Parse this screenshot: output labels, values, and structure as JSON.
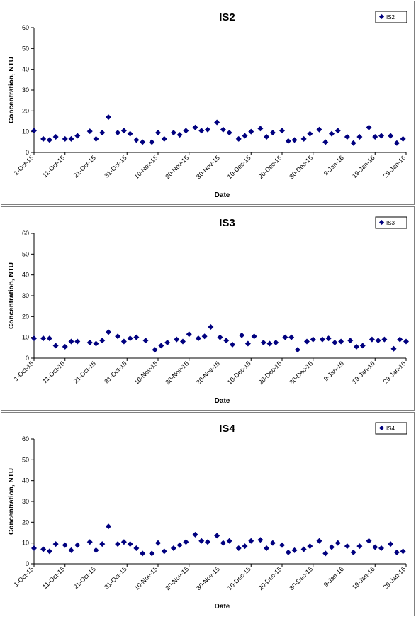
{
  "colors": {
    "marker": "#00007F",
    "axis": "#000000",
    "border": "#808080"
  },
  "chart_data": [
    {
      "type": "scatter",
      "title": "IS2",
      "xlabel": "Date",
      "ylabel": "Concentration, NTU",
      "ylim": [
        0,
        60
      ],
      "yticks": [
        "0",
        "10",
        "20",
        "30",
        "40",
        "50",
        "60"
      ],
      "xlim": [
        "2015-10-01",
        "2016-01-29"
      ],
      "xticks": [
        "1-Oct-15",
        "11-Oct-15",
        "21-Oct-15",
        "31-Oct-15",
        "10-Nov-15",
        "20-Nov-15",
        "30-Nov-15",
        "10-Dec-15",
        "20-Dec-15",
        "30-Dec-15",
        "9-Jan-16",
        "19-Jan-16",
        "29-Jan-16"
      ],
      "legend": "top-right",
      "grid": false,
      "series": [
        {
          "name": "IS2",
          "points": [
            [
              "2015-10-01",
              10.5
            ],
            [
              "2015-10-04",
              6.5
            ],
            [
              "2015-10-06",
              6
            ],
            [
              "2015-10-08",
              7.5
            ],
            [
              "2015-10-11",
              6.5
            ],
            [
              "2015-10-13",
              6.5
            ],
            [
              "2015-10-15",
              8
            ],
            [
              "2015-10-19",
              10.2
            ],
            [
              "2015-10-21",
              6.5
            ],
            [
              "2015-10-23",
              9.5
            ],
            [
              "2015-10-25",
              17
            ],
            [
              "2015-10-28",
              9.5
            ],
            [
              "2015-10-30",
              10.5
            ],
            [
              "2015-11-01",
              9
            ],
            [
              "2015-11-03",
              6
            ],
            [
              "2015-11-05",
              5
            ],
            [
              "2015-11-08",
              5
            ],
            [
              "2015-11-10",
              9.5
            ],
            [
              "2015-11-12",
              6.5
            ],
            [
              "2015-11-15",
              9.5
            ],
            [
              "2015-11-17",
              8.5
            ],
            [
              "2015-11-19",
              10.5
            ],
            [
              "2015-11-22",
              12
            ],
            [
              "2015-11-24",
              10.5
            ],
            [
              "2015-11-26",
              11
            ],
            [
              "2015-11-29",
              14.5
            ],
            [
              "2015-12-01",
              11
            ],
            [
              "2015-12-03",
              9.5
            ],
            [
              "2015-12-06",
              6.5
            ],
            [
              "2015-12-08",
              8
            ],
            [
              "2015-12-10",
              10
            ],
            [
              "2015-12-13",
              11.5
            ],
            [
              "2015-12-15",
              7.5
            ],
            [
              "2015-12-17",
              9.5
            ],
            [
              "2015-12-20",
              10.5
            ],
            [
              "2015-12-22",
              5.5
            ],
            [
              "2015-12-24",
              6
            ],
            [
              "2015-12-27",
              6.5
            ],
            [
              "2015-12-29",
              9
            ],
            [
              "2016-01-01",
              11
            ],
            [
              "2016-01-03",
              5
            ],
            [
              "2016-01-05",
              9
            ],
            [
              "2016-01-07",
              10.5
            ],
            [
              "2016-01-10",
              7.5
            ],
            [
              "2016-01-12",
              4.5
            ],
            [
              "2016-01-14",
              7.5
            ],
            [
              "2016-01-17",
              12
            ],
            [
              "2016-01-19",
              7.5
            ],
            [
              "2016-01-21",
              8
            ],
            [
              "2016-01-24",
              8
            ],
            [
              "2016-01-26",
              4.5
            ],
            [
              "2016-01-28",
              6.5
            ]
          ]
        }
      ]
    },
    {
      "type": "scatter",
      "title": "IS3",
      "xlabel": "Date",
      "ylabel": "Concentration, NTU",
      "ylim": [
        0,
        60
      ],
      "yticks": [
        "0",
        "10",
        "20",
        "30",
        "40",
        "50",
        "60"
      ],
      "xlim": [
        "2015-10-01",
        "2016-01-29"
      ],
      "xticks": [
        "1-Oct-15",
        "11-Oct-15",
        "21-Oct-15",
        "31-Oct-15",
        "10-Nov-15",
        "20-Nov-15",
        "30-Nov-15",
        "10-Dec-15",
        "20-Dec-15",
        "30-Dec-15",
        "9-Jan-16",
        "19-Jan-16",
        "29-Jan-16"
      ],
      "legend": "top-right",
      "grid": false,
      "series": [
        {
          "name": "IS3",
          "points": [
            [
              "2015-10-01",
              9.5
            ],
            [
              "2015-10-04",
              9.5
            ],
            [
              "2015-10-06",
              9.5
            ],
            [
              "2015-10-08",
              6
            ],
            [
              "2015-10-11",
              5.5
            ],
            [
              "2015-10-13",
              8
            ],
            [
              "2015-10-15",
              8
            ],
            [
              "2015-10-19",
              7.5
            ],
            [
              "2015-10-21",
              7
            ],
            [
              "2015-10-23",
              8.5
            ],
            [
              "2015-10-25",
              12.5
            ],
            [
              "2015-10-28",
              10.5
            ],
            [
              "2015-10-30",
              8
            ],
            [
              "2015-11-01",
              9.5
            ],
            [
              "2015-11-03",
              10
            ],
            [
              "2015-11-06",
              8.5
            ],
            [
              "2015-11-09",
              4
            ],
            [
              "2015-11-11",
              6
            ],
            [
              "2015-11-13",
              7.5
            ],
            [
              "2015-11-16",
              9
            ],
            [
              "2015-11-18",
              8
            ],
            [
              "2015-11-20",
              11.5
            ],
            [
              "2015-11-23",
              9.5
            ],
            [
              "2015-11-25",
              10.5
            ],
            [
              "2015-11-27",
              15
            ],
            [
              "2015-11-30",
              10
            ],
            [
              "2015-12-02",
              8.5
            ],
            [
              "2015-12-04",
              6.5
            ],
            [
              "2015-12-07",
              11
            ],
            [
              "2015-12-09",
              7
            ],
            [
              "2015-12-11",
              10.5
            ],
            [
              "2015-12-14",
              7.5
            ],
            [
              "2015-12-16",
              7
            ],
            [
              "2015-12-18",
              7.5
            ],
            [
              "2015-12-21",
              10
            ],
            [
              "2015-12-23",
              10
            ],
            [
              "2015-12-25",
              4
            ],
            [
              "2015-12-28",
              8
            ],
            [
              "2015-12-30",
              9
            ],
            [
              "2016-01-02",
              9
            ],
            [
              "2016-01-04",
              9.5
            ],
            [
              "2016-01-06",
              7.5
            ],
            [
              "2016-01-08",
              8
            ],
            [
              "2016-01-11",
              8.5
            ],
            [
              "2016-01-13",
              5.5
            ],
            [
              "2016-01-15",
              6
            ],
            [
              "2016-01-18",
              9
            ],
            [
              "2016-01-20",
              8.5
            ],
            [
              "2016-01-22",
              9
            ],
            [
              "2016-01-25",
              4.5
            ],
            [
              "2016-01-27",
              9
            ],
            [
              "2016-01-29",
              8
            ]
          ]
        }
      ]
    },
    {
      "type": "scatter",
      "title": "IS4",
      "xlabel": "Date",
      "ylabel": "Concentration, NTU",
      "ylim": [
        0,
        60
      ],
      "yticks": [
        "0",
        "10",
        "20",
        "30",
        "40",
        "50",
        "60"
      ],
      "xlim": [
        "2015-10-01",
        "2016-01-29"
      ],
      "xticks": [
        "1-Oct-15",
        "11-Oct-15",
        "21-Oct-15",
        "31-Oct-15",
        "10-Nov-15",
        "20-Nov-15",
        "30-Nov-15",
        "10-Dec-15",
        "20-Dec-15",
        "30-Dec-15",
        "9-Jan-16",
        "19-Jan-16",
        "29-Jan-16"
      ],
      "legend": "top-right",
      "grid": false,
      "series": [
        {
          "name": "IS4",
          "points": [
            [
              "2015-10-01",
              7.5
            ],
            [
              "2015-10-04",
              7
            ],
            [
              "2015-10-06",
              6
            ],
            [
              "2015-10-08",
              9.5
            ],
            [
              "2015-10-11",
              9
            ],
            [
              "2015-10-13",
              6.5
            ],
            [
              "2015-10-15",
              9
            ],
            [
              "2015-10-19",
              10.5
            ],
            [
              "2015-10-21",
              6.5
            ],
            [
              "2015-10-23",
              9.5
            ],
            [
              "2015-10-25",
              18
            ],
            [
              "2015-10-28",
              9.5
            ],
            [
              "2015-10-30",
              10.5
            ],
            [
              "2015-11-01",
              9.5
            ],
            [
              "2015-11-03",
              7.5
            ],
            [
              "2015-11-05",
              5
            ],
            [
              "2015-11-08",
              5
            ],
            [
              "2015-11-10",
              10
            ],
            [
              "2015-11-12",
              6
            ],
            [
              "2015-11-15",
              7.5
            ],
            [
              "2015-11-17",
              9
            ],
            [
              "2015-11-19",
              10.5
            ],
            [
              "2015-11-22",
              14
            ],
            [
              "2015-11-24",
              11
            ],
            [
              "2015-11-26",
              10.5
            ],
            [
              "2015-11-29",
              13.5
            ],
            [
              "2015-12-01",
              10
            ],
            [
              "2015-12-03",
              11
            ],
            [
              "2015-12-06",
              7.5
            ],
            [
              "2015-12-08",
              8.5
            ],
            [
              "2015-12-10",
              11
            ],
            [
              "2015-12-13",
              11.5
            ],
            [
              "2015-12-15",
              7.5
            ],
            [
              "2015-12-17",
              10
            ],
            [
              "2015-12-20",
              9
            ],
            [
              "2015-12-22",
              5.5
            ],
            [
              "2015-12-24",
              6.5
            ],
            [
              "2015-12-27",
              7
            ],
            [
              "2015-12-29",
              8.5
            ],
            [
              "2016-01-01",
              11
            ],
            [
              "2016-01-03",
              5
            ],
            [
              "2016-01-05",
              8
            ],
            [
              "2016-01-07",
              10
            ],
            [
              "2016-01-10",
              8.5
            ],
            [
              "2016-01-12",
              5.5
            ],
            [
              "2016-01-14",
              8.5
            ],
            [
              "2016-01-17",
              11
            ],
            [
              "2016-01-19",
              8
            ],
            [
              "2016-01-21",
              7.5
            ],
            [
              "2016-01-24",
              9.5
            ],
            [
              "2016-01-26",
              5.5
            ],
            [
              "2016-01-28",
              6
            ]
          ]
        }
      ]
    }
  ]
}
